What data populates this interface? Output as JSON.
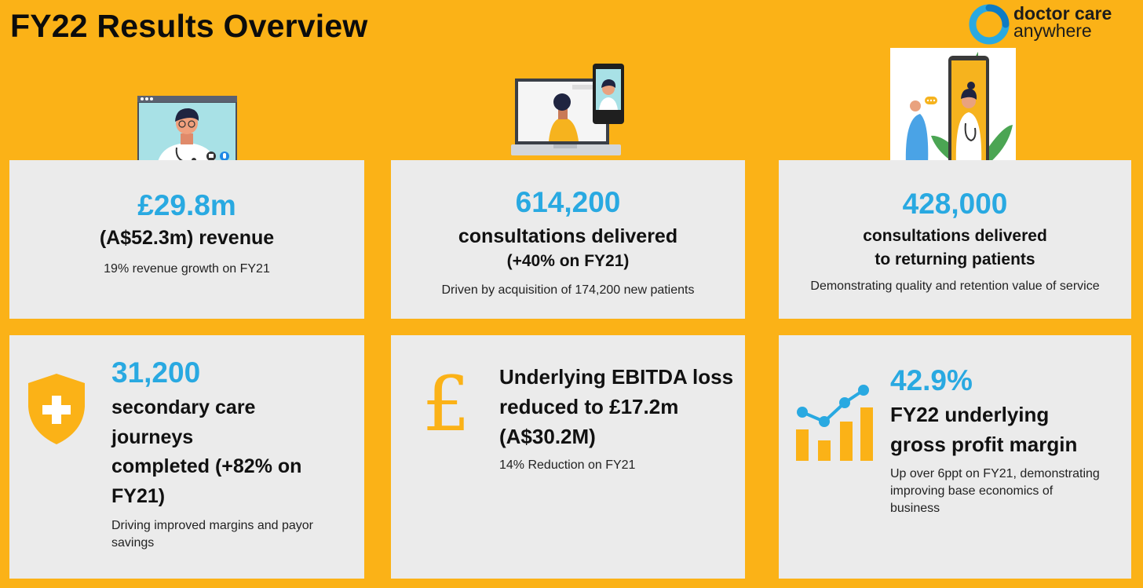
{
  "page_title": "FY22 Results Overview",
  "logo": {
    "line1": "doctor care",
    "line2": "anywhere",
    "brand_color": "#29A9E1"
  },
  "colors": {
    "background": "#FBB217",
    "card": "#EBEBEB",
    "accent": "#29A9E1",
    "icon": "#FBB217"
  },
  "cards": [
    {
      "value": "£29.8m",
      "heading": "(A$52.3m) revenue",
      "detail": "19% revenue growth on FY21"
    },
    {
      "value": "614,200",
      "heading_line1": "consultations delivered",
      "heading_line2": "(+40% on FY21)",
      "detail": "Driven by acquisition of 174,200 new patients"
    },
    {
      "value": "428,000",
      "heading_line1": "consultations delivered",
      "heading_line2": "to returning patients",
      "detail": "Demonstrating quality and retention value of service"
    },
    {
      "value": "31,200",
      "heading_lines": [
        "secondary care",
        "journeys",
        "completed (+82% on",
        "FY21)"
      ],
      "detail_lines": [
        "Driving improved margins and payor",
        "savings"
      ]
    },
    {
      "heading_lines": [
        "Underlying EBITDA loss",
        "reduced to £17.2m",
        "(A$30.2M)"
      ],
      "detail": "14% Reduction on FY21"
    },
    {
      "value": "42.9%",
      "heading_lines": [
        "FY22 underlying",
        "gross profit margin"
      ],
      "detail_lines": [
        "Up over 6ppt on FY21, demonstrating",
        "improving base economics of",
        "business"
      ]
    }
  ]
}
